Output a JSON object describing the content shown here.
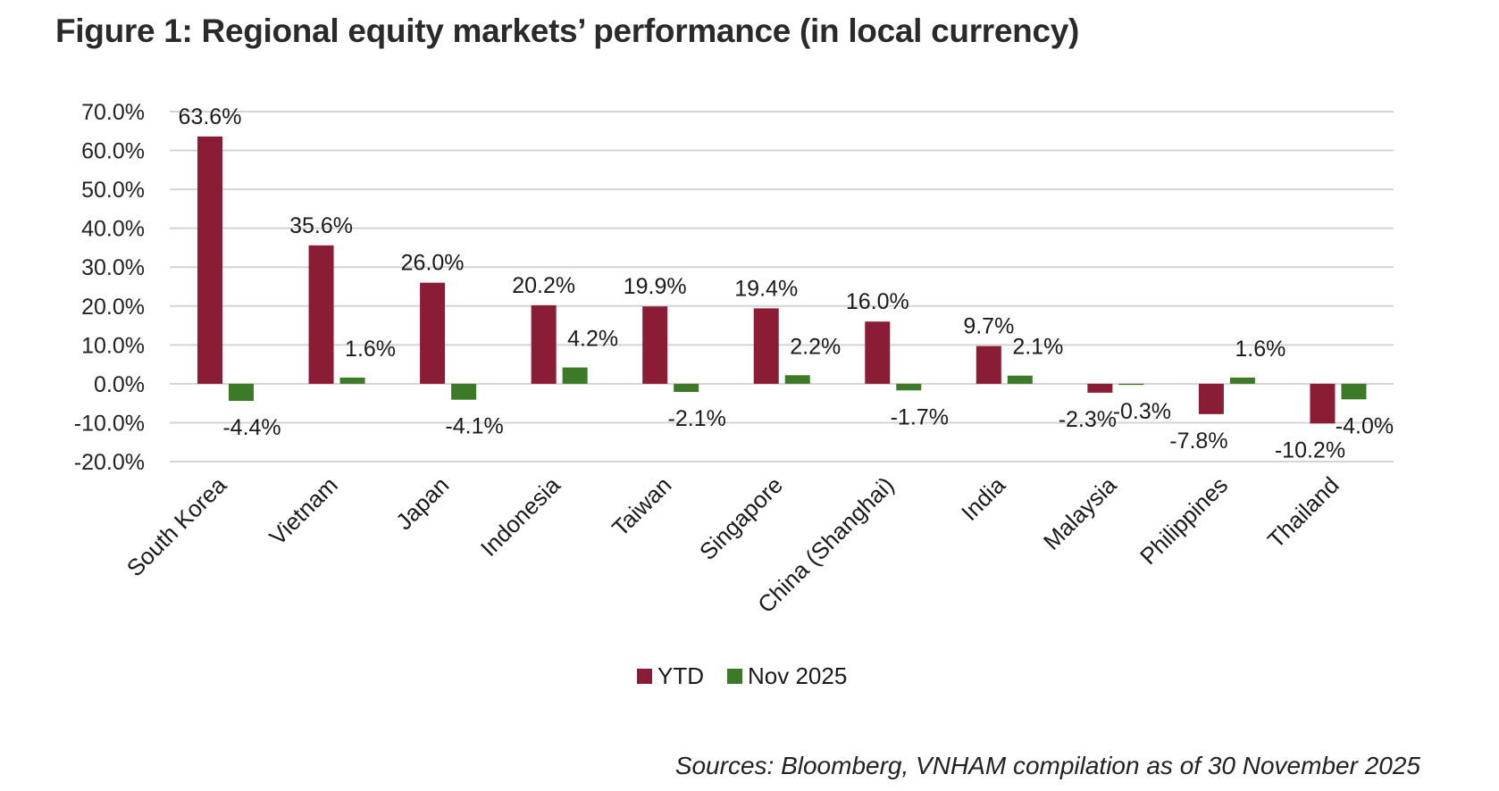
{
  "title": "Figure 1: Regional equity markets’ performance (in local currency)",
  "source": "Sources: Bloomberg, VNHAM compilation as of 30 November 2025",
  "colors": {
    "ytd": "#8b1c35",
    "nov": "#3d7a28",
    "grid": "#d4d4d4"
  },
  "chart_data": {
    "type": "bar",
    "categories": [
      "South Korea",
      "Vietnam",
      "Japan",
      "Indonesia",
      "Taiwan",
      "Singapore",
      "China (Shanghai)",
      "India",
      "Malaysia",
      "Philippines",
      "Thailand"
    ],
    "series": [
      {
        "name": "YTD",
        "values": [
          63.6,
          35.6,
          26.0,
          20.2,
          19.9,
          19.4,
          16.0,
          9.7,
          -2.3,
          -7.8,
          -10.2
        ],
        "labels": [
          "63.6%",
          "35.6%",
          "26.0%",
          "20.2%",
          "19.9%",
          "19.4%",
          "16.0%",
          "9.7%",
          "-2.3%",
          "-7.8%",
          "-10.2%"
        ]
      },
      {
        "name": "Nov 2025",
        "values": [
          -4.4,
          1.6,
          -4.1,
          4.2,
          -2.1,
          2.2,
          -1.7,
          2.1,
          -0.3,
          1.6,
          -4.0
        ],
        "labels": [
          "-4.4%",
          "1.6%",
          "-4.1%",
          "4.2%",
          "-2.1%",
          "2.2%",
          "-1.7%",
          "2.1%",
          "-0.3%",
          "1.6%",
          "-4.0%"
        ]
      }
    ],
    "ylim": [
      -20,
      70
    ],
    "yticks": [
      -20,
      -10,
      0,
      10,
      20,
      30,
      40,
      50,
      60,
      70
    ],
    "ytick_labels": [
      "-20.0%",
      "-10.0%",
      "0.0%",
      "10.0%",
      "20.0%",
      "30.0%",
      "40.0%",
      "50.0%",
      "60.0%",
      "70.0%"
    ],
    "grid": true,
    "legend_position": "bottom-center"
  }
}
